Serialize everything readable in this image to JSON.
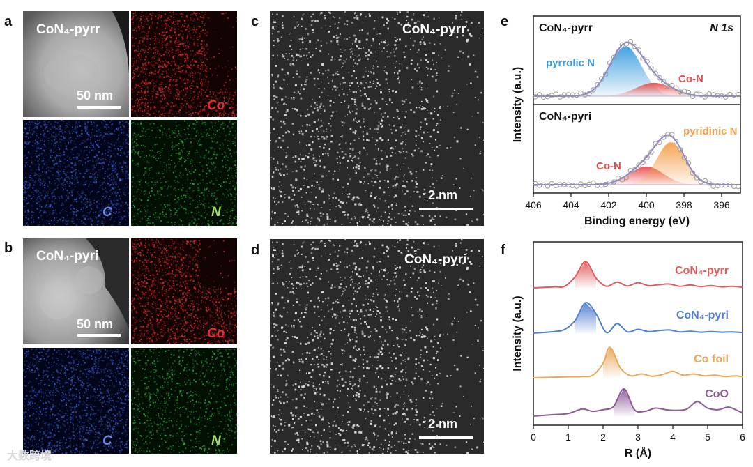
{
  "panels": {
    "a": {
      "label": "a",
      "sample": "CoN₄-pyrr",
      "scale": "50 nm",
      "maps": [
        "Co",
        "C",
        "N"
      ],
      "colors": {
        "Co": "#e03030",
        "C": "#3a5fd0",
        "N": "#33b044"
      }
    },
    "b": {
      "label": "b",
      "sample": "CoN₄-pyri",
      "scale": "50 nm",
      "maps": [
        "Co",
        "C",
        "N"
      ],
      "colors": {
        "Co": "#e03030",
        "C": "#3a5fd0",
        "N": "#33b044"
      }
    },
    "c": {
      "label": "c",
      "sample": "CoN₄-pyrr",
      "scale": "2 nm"
    },
    "d": {
      "label": "d",
      "sample": "CoN₄-pyri",
      "scale": "2 nm"
    }
  },
  "watermark": "大数跨境",
  "chart_data": [
    {
      "panel": "e",
      "type": "line",
      "title": "N 1s",
      "xlabel": "Binding energy (eV)",
      "ylabel": "Intensity (a.u.)",
      "xlim": [
        406,
        395
      ],
      "x_ticks": [
        406,
        404,
        402,
        400,
        398,
        396
      ],
      "x_direction": "reversed",
      "subplots": [
        {
          "name": "CoN₄-pyrr",
          "peaks": [
            {
              "label": "pyrrolic N",
              "center": 401.1,
              "height": 0.82,
              "sigma": 0.85,
              "color": "#3b9ee0"
            },
            {
              "label": "Co-N",
              "center": 399.6,
              "height": 0.22,
              "sigma": 0.95,
              "color": "#e84b4b"
            }
          ]
        },
        {
          "name": "CoN₄-pyri",
          "peaks": [
            {
              "label": "Co-N",
              "center": 400.0,
              "height": 0.3,
              "sigma": 0.9,
              "color": "#e84b4b"
            },
            {
              "label": "pyridinic N",
              "center": 398.7,
              "height": 0.7,
              "sigma": 0.75,
              "color": "#f2a04a"
            }
          ]
        }
      ],
      "envelope_color": "#8a86c8",
      "point_color": "#9a9a9a"
    },
    {
      "panel": "f",
      "type": "line",
      "xlabel": "R (Å)",
      "ylabel": "Intensity (a.u.)",
      "xlim": [
        0,
        6
      ],
      "x_ticks": [
        0,
        1,
        2,
        3,
        4,
        5,
        6
      ],
      "series": [
        {
          "name": "CoN₄-pyrr",
          "color": "#e05c5c",
          "x": [
            0,
            0.6,
            0.9,
            1.2,
            1.5,
            1.8,
            2.1,
            2.4,
            2.7,
            3.0,
            3.3,
            3.6,
            3.9,
            4.2,
            4.5,
            4.8,
            5.1,
            5.4,
            5.7,
            6.0
          ],
          "y": [
            0,
            0.03,
            0.05,
            0.35,
            0.82,
            0.3,
            0.05,
            0.18,
            0.06,
            0.16,
            0.07,
            0.1,
            0.12,
            0.05,
            0.09,
            0.04,
            0.07,
            0.03,
            0.05,
            0.02
          ]
        },
        {
          "name": "CoN₄-pyri",
          "color": "#4f7fcf",
          "x": [
            0,
            0.6,
            0.9,
            1.2,
            1.5,
            1.8,
            2.1,
            2.4,
            2.7,
            3.0,
            3.3,
            3.6,
            3.9,
            4.2,
            4.5,
            4.8,
            5.1,
            5.4,
            5.7,
            6.0
          ],
          "y": [
            0,
            0.05,
            0.12,
            0.4,
            0.95,
            0.6,
            0.02,
            0.3,
            0.04,
            0.12,
            0.05,
            0.08,
            0.1,
            0.04,
            0.06,
            0.03,
            0.05,
            0.03,
            0.04,
            0.02
          ]
        },
        {
          "name": "Co foil",
          "color": "#e8a85a",
          "x": [
            0,
            0.6,
            1.0,
            1.4,
            1.7,
            2.0,
            2.2,
            2.5,
            2.8,
            3.1,
            3.4,
            3.7,
            4.0,
            4.3,
            4.6,
            4.9,
            5.2,
            5.5,
            5.8,
            6.0
          ],
          "y": [
            0,
            0.02,
            0.03,
            0.04,
            0.08,
            0.45,
            0.95,
            0.3,
            0.06,
            0.12,
            0.05,
            0.1,
            0.2,
            0.08,
            0.12,
            0.06,
            0.08,
            0.04,
            0.06,
            0.03
          ]
        },
        {
          "name": "CoO",
          "color": "#8e5a9a",
          "x": [
            0,
            0.6,
            1.0,
            1.4,
            1.7,
            2.0,
            2.3,
            2.6,
            2.9,
            3.2,
            3.5,
            3.8,
            4.1,
            4.4,
            4.7,
            5.0,
            5.3,
            5.6,
            5.9,
            6.0
          ],
          "y": [
            0,
            0.05,
            0.08,
            0.22,
            0.15,
            0.2,
            0.3,
            0.85,
            0.2,
            0.15,
            0.25,
            0.2,
            0.18,
            0.22,
            0.45,
            0.25,
            0.2,
            0.28,
            0.15,
            0.1
          ]
        }
      ]
    }
  ]
}
